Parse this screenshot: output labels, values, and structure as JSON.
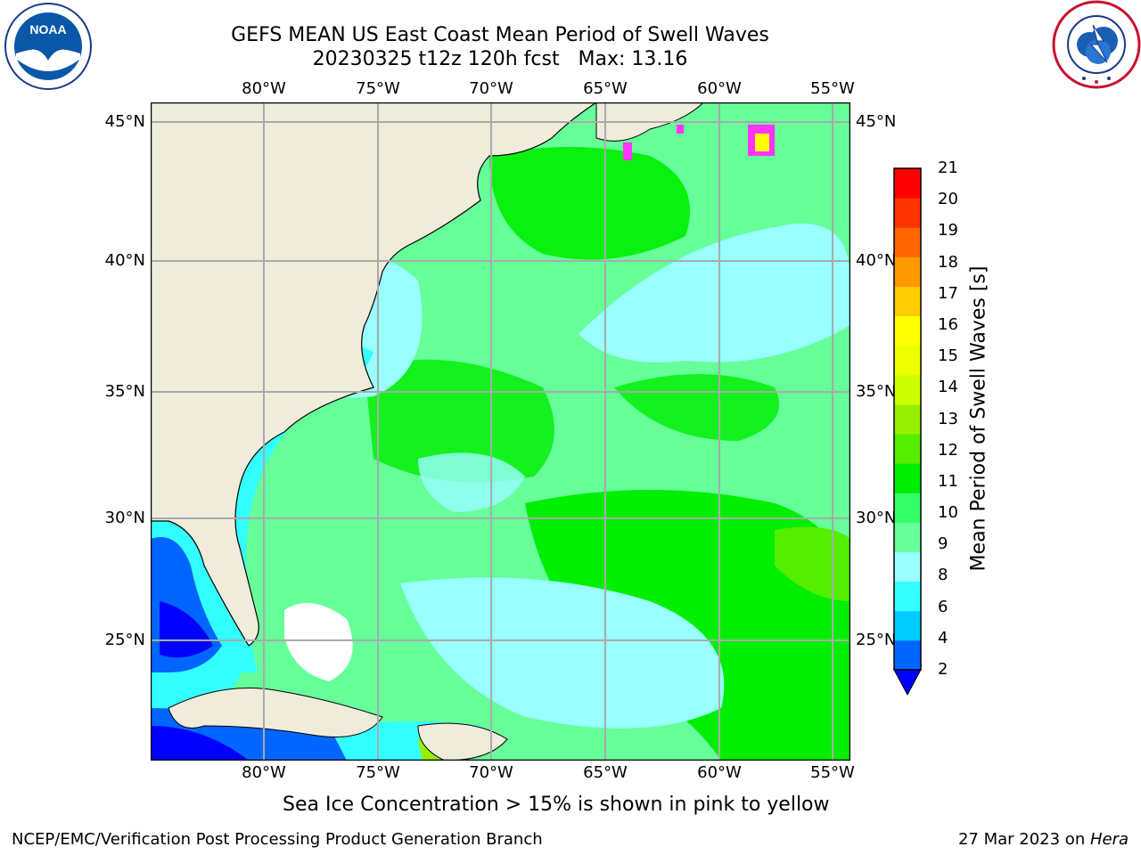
{
  "header": {
    "title_line1": "GEFS MEAN US East Coast Mean Period of Swell Waves",
    "title_line2": "20230325 t12z 120h fcst   Max: 13.16"
  },
  "logos": {
    "left": {
      "name": "noaa-logo",
      "text": "NOAA"
    },
    "right": {
      "name": "nws-logo"
    }
  },
  "map": {
    "lon_labels": [
      "80°W",
      "75°W",
      "70°W",
      "65°W",
      "60°W",
      "55°W"
    ],
    "lat_labels": [
      "45°N",
      "40°N",
      "35°N",
      "30°N",
      "25°N"
    ],
    "land_color": "#efecdc",
    "grid_color": "#aaaaaa"
  },
  "colorbar": {
    "title": "Mean Period of Swell Waves [s]",
    "tick_labels": [
      "2",
      "4",
      "6",
      "8",
      "9",
      "10",
      "11",
      "12",
      "13",
      "14",
      "15",
      "16",
      "17",
      "18",
      "19",
      "20",
      "21"
    ],
    "colors": [
      "#0066ff",
      "#00ccff",
      "#33ffff",
      "#99ffff",
      "#66ff99",
      "#33ff66",
      "#00ee00",
      "#55ee00",
      "#99ee00",
      "#ccff00",
      "#eeff00",
      "#ffff00",
      "#ffcc00",
      "#ff9900",
      "#ff6600",
      "#ff3300",
      "#ff0000"
    ],
    "under_color": "#0000ff"
  },
  "note": "Sea Ice Concentration > 15% is shown in pink to yellow",
  "footer": {
    "left": "NCEP/EMC/Verification Post Processing Product Generation Branch",
    "right_date": "27 Mar 2023 on ",
    "right_host": "Hera"
  }
}
